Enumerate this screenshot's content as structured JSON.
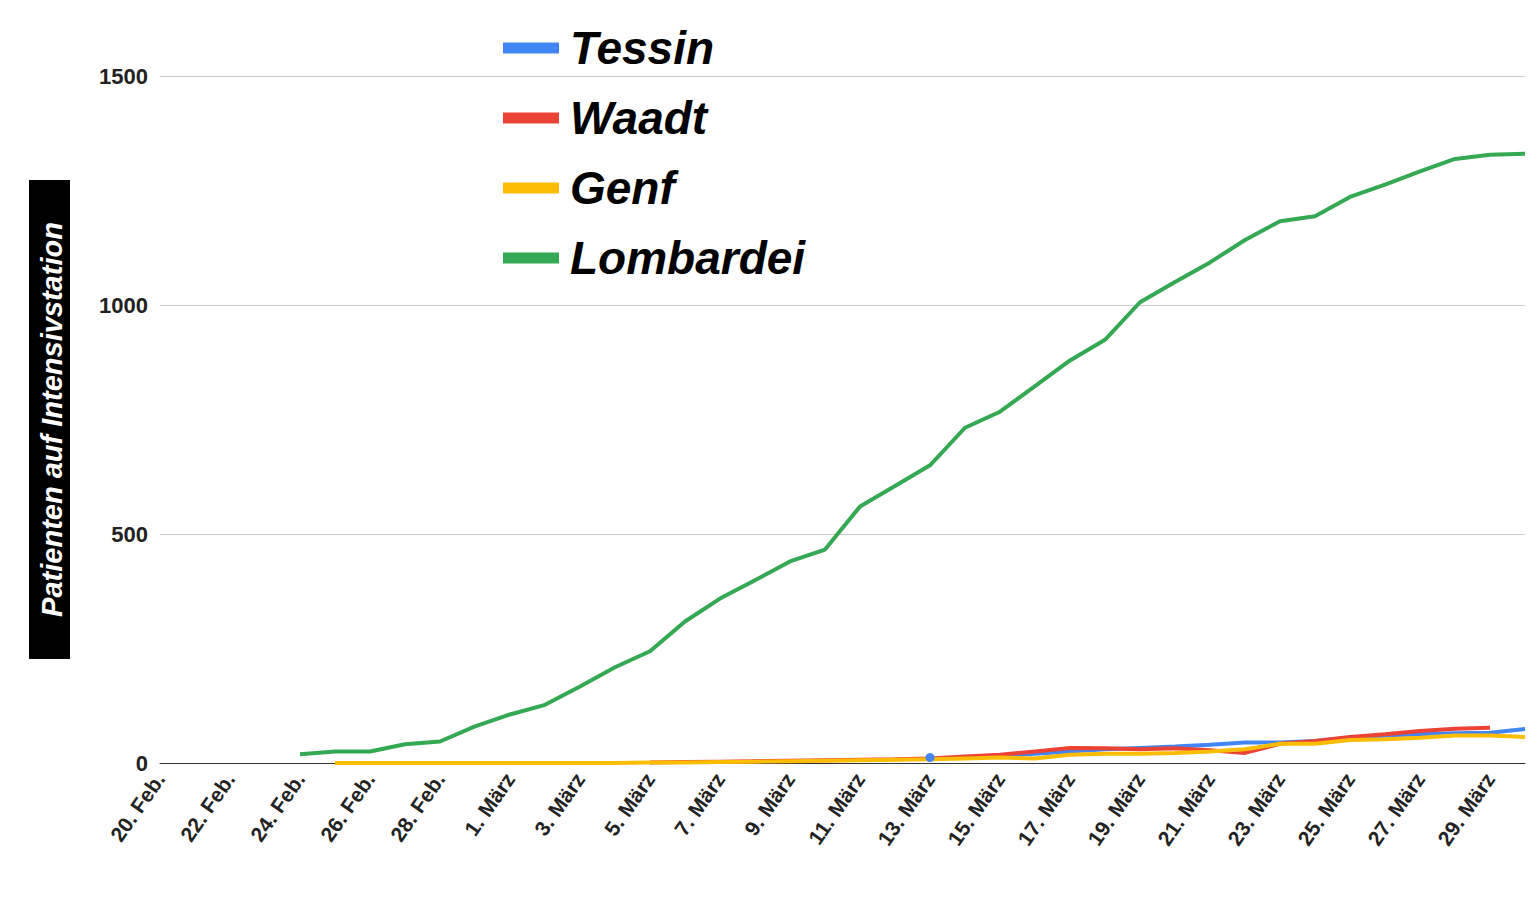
{
  "chart_data": {
    "type": "line",
    "ylabel": "Patienten auf Intensivstation",
    "categories": [
      "20. Feb.",
      null,
      "22. Feb.",
      null,
      "24. Feb.",
      null,
      "26. Feb.",
      null,
      "28. Feb.",
      null,
      "1. März",
      null,
      "3. März",
      null,
      "5. März",
      null,
      "7. März",
      null,
      "9. März",
      null,
      "11. März",
      null,
      "13. März",
      null,
      "15. März",
      null,
      "17. März",
      null,
      "19. März",
      null,
      "21. März",
      null,
      "23. März",
      null,
      "25. März",
      null,
      "27. März",
      null,
      "29. März",
      null
    ],
    "series": [
      {
        "name": "Tessin",
        "color": "#4285f4",
        "values": [
          null,
          null,
          null,
          null,
          null,
          null,
          null,
          null,
          null,
          null,
          null,
          null,
          null,
          null,
          null,
          null,
          null,
          null,
          null,
          null,
          null,
          null,
          12,
          null,
          15,
          20,
          25,
          30,
          33,
          36,
          40,
          45,
          45,
          48,
          55,
          60,
          63,
          65,
          66,
          74
        ]
      },
      {
        "name": "Waadt",
        "color": "#ea4335",
        "values": [
          null,
          null,
          null,
          null,
          null,
          null,
          null,
          null,
          null,
          null,
          null,
          null,
          null,
          null,
          1,
          2,
          3,
          4,
          5,
          6,
          7,
          8,
          10,
          14,
          18,
          25,
          33,
          32,
          30,
          32,
          28,
          22,
          42,
          48,
          57,
          63,
          70,
          75,
          77,
          null
        ]
      },
      {
        "name": "Genf",
        "color": "#fbbc04",
        "values": [
          null,
          null,
          null,
          null,
          null,
          0,
          0,
          0,
          0,
          0,
          0,
          0,
          0,
          0,
          1,
          1,
          2,
          3,
          4,
          5,
          6,
          7,
          8,
          10,
          12,
          10,
          18,
          20,
          20,
          22,
          25,
          30,
          42,
          42,
          50,
          52,
          55,
          60,
          60,
          57
        ]
      },
      {
        "name": "Lombardei",
        "color": "#34a853",
        "values": [
          null,
          null,
          null,
          null,
          19,
          25,
          25,
          41,
          47,
          80,
          106,
          127,
          167,
          209,
          244,
          309,
          359,
          399,
          440,
          466,
          560,
          605,
          650,
          732,
          767,
          823,
          879,
          924,
          1006,
          1050,
          1093,
          1142,
          1183,
          1194,
          1236,
          1263,
          1292,
          1319,
          1328,
          1330
        ]
      }
    ],
    "ylim": [
      0,
      1500
    ],
    "yticks": [
      0,
      500,
      1000,
      1500
    ],
    "grid": true,
    "legend": "top",
    "marker": "none"
  }
}
